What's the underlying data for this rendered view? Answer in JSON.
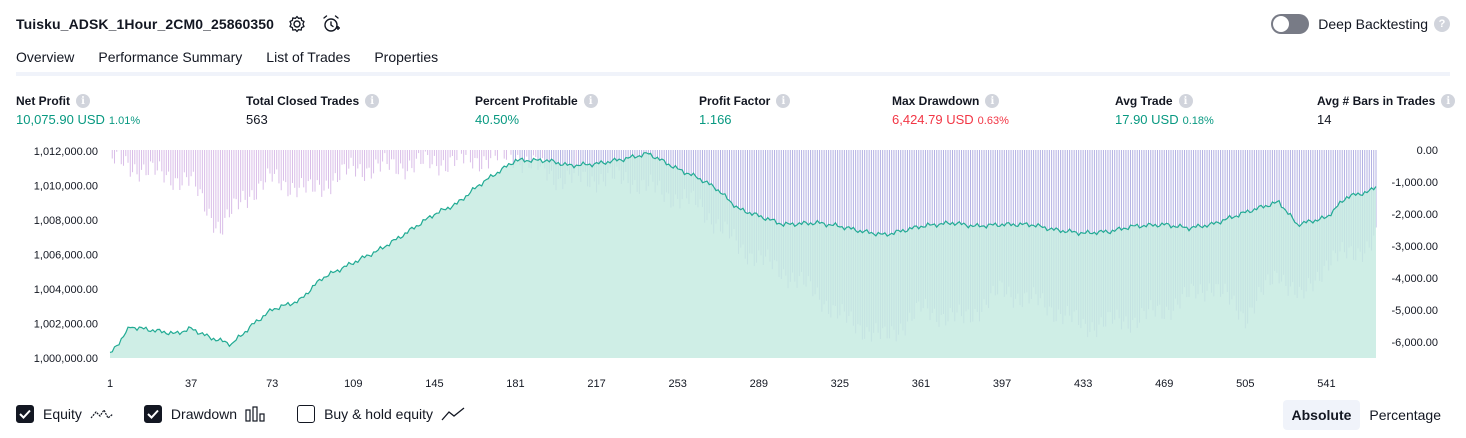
{
  "header": {
    "title": "Tuisku_ADSK_1Hour_2CM0_25860350"
  },
  "deep_backtesting": {
    "label": "Deep Backtesting",
    "enabled": false,
    "help": "?"
  },
  "tabs": [
    {
      "label": "Overview",
      "active": true
    },
    {
      "label": "Performance Summary",
      "active": false
    },
    {
      "label": "List of Trades",
      "active": false
    },
    {
      "label": "Properties",
      "active": false
    }
  ],
  "metrics": {
    "net_profit": {
      "label": "Net Profit",
      "value": "10,075.90 USD",
      "sub": "1.01%"
    },
    "total_closed_trades": {
      "label": "Total Closed Trades",
      "value": "563"
    },
    "percent_profitable": {
      "label": "Percent Profitable",
      "value": "40.50%"
    },
    "profit_factor": {
      "label": "Profit Factor",
      "value": "1.166"
    },
    "max_drawdown": {
      "label": "Max Drawdown",
      "value": "6,424.79 USD",
      "sub": "0.63%"
    },
    "avg_trade": {
      "label": "Avg Trade",
      "value": "17.90 USD",
      "sub": "0.18%"
    },
    "avg_bars": {
      "label": "Avg # Bars in Trades",
      "value": "14"
    },
    "info_glyph": "i"
  },
  "chart_data": {
    "type": "area",
    "equity": {
      "x": [
        1,
        10,
        20,
        30,
        37,
        45,
        55,
        65,
        73,
        85,
        95,
        109,
        120,
        130,
        145,
        155,
        165,
        181,
        195,
        205,
        217,
        230,
        240,
        253,
        262,
        270,
        280,
        289,
        300,
        315,
        325,
        335,
        345,
        361,
        375,
        385,
        397,
        410,
        420,
        433,
        445,
        455,
        469,
        480,
        490,
        505,
        512,
        520,
        528,
        541,
        550,
        560,
        563
      ],
      "y": [
        1000200,
        1001800,
        1001600,
        1001400,
        1001700,
        1001200,
        1000800,
        1002000,
        1002800,
        1003300,
        1004600,
        1005500,
        1006200,
        1007000,
        1008300,
        1008900,
        1010000,
        1011400,
        1011400,
        1011100,
        1011200,
        1011500,
        1011800,
        1010900,
        1010400,
        1009800,
        1008600,
        1008200,
        1007700,
        1007800,
        1007600,
        1007300,
        1007100,
        1007600,
        1007800,
        1007600,
        1007700,
        1007700,
        1007400,
        1007200,
        1007300,
        1007600,
        1007700,
        1007500,
        1007700,
        1008400,
        1008700,
        1009000,
        1007700,
        1008100,
        1009300,
        1009600,
        1009900
      ],
      "ylim": [
        1000000,
        1012000
      ],
      "y_ticks": [
        "1,012,000.00",
        "1,010,000.00",
        "1,008,000.00",
        "1,006,000.00",
        "1,004,000.00",
        "1,002,000.00",
        "1,000,000.00"
      ]
    },
    "drawdown": {
      "x": [
        1,
        20,
        37,
        50,
        60,
        73,
        90,
        109,
        130,
        145,
        181,
        200,
        230,
        253,
        262,
        280,
        289,
        300,
        315,
        325,
        345,
        361,
        380,
        397,
        415,
        433,
        455,
        469,
        490,
        505,
        520,
        530,
        541,
        560,
        563
      ],
      "y": [
        -300,
        -700,
        -1000,
        -2500,
        -1500,
        -900,
        -1300,
        -600,
        -500,
        -400,
        -200,
        -900,
        -900,
        -1500,
        -1700,
        -3000,
        -3400,
        -3800,
        -4500,
        -5200,
        -5900,
        -5000,
        -5300,
        -4400,
        -4800,
        -5500,
        -5300,
        -5000,
        -4200,
        -5200,
        -3800,
        -4700,
        -3500,
        -3000,
        -2800
      ],
      "ylim": [
        -6500,
        0
      ],
      "y_ticks": [
        "0.00",
        "-1,000.00",
        "-2,000.00",
        "-3,000.00",
        "-4,000.00",
        "-5,000.00",
        "-6,000.00"
      ]
    },
    "x_ticks": [
      "1",
      "37",
      "73",
      "109",
      "145",
      "181",
      "217",
      "253",
      "289",
      "325",
      "361",
      "397",
      "433",
      "469",
      "505",
      "541"
    ],
    "xlim": [
      1,
      563
    ],
    "colors": {
      "equity_line": "#22ab94",
      "equity_fill": "#c7ebe2",
      "drawdown_pos": "#d9bde8",
      "drawdown_neg": "#b3b1e3"
    }
  },
  "legend": {
    "equity": {
      "label": "Equity",
      "checked": true
    },
    "drawdown": {
      "label": "Drawdown",
      "checked": true
    },
    "buy_hold": {
      "label": "Buy & hold equity",
      "checked": false
    }
  },
  "mode": {
    "absolute": "Absolute",
    "percentage": "Percentage",
    "selected": "absolute"
  }
}
